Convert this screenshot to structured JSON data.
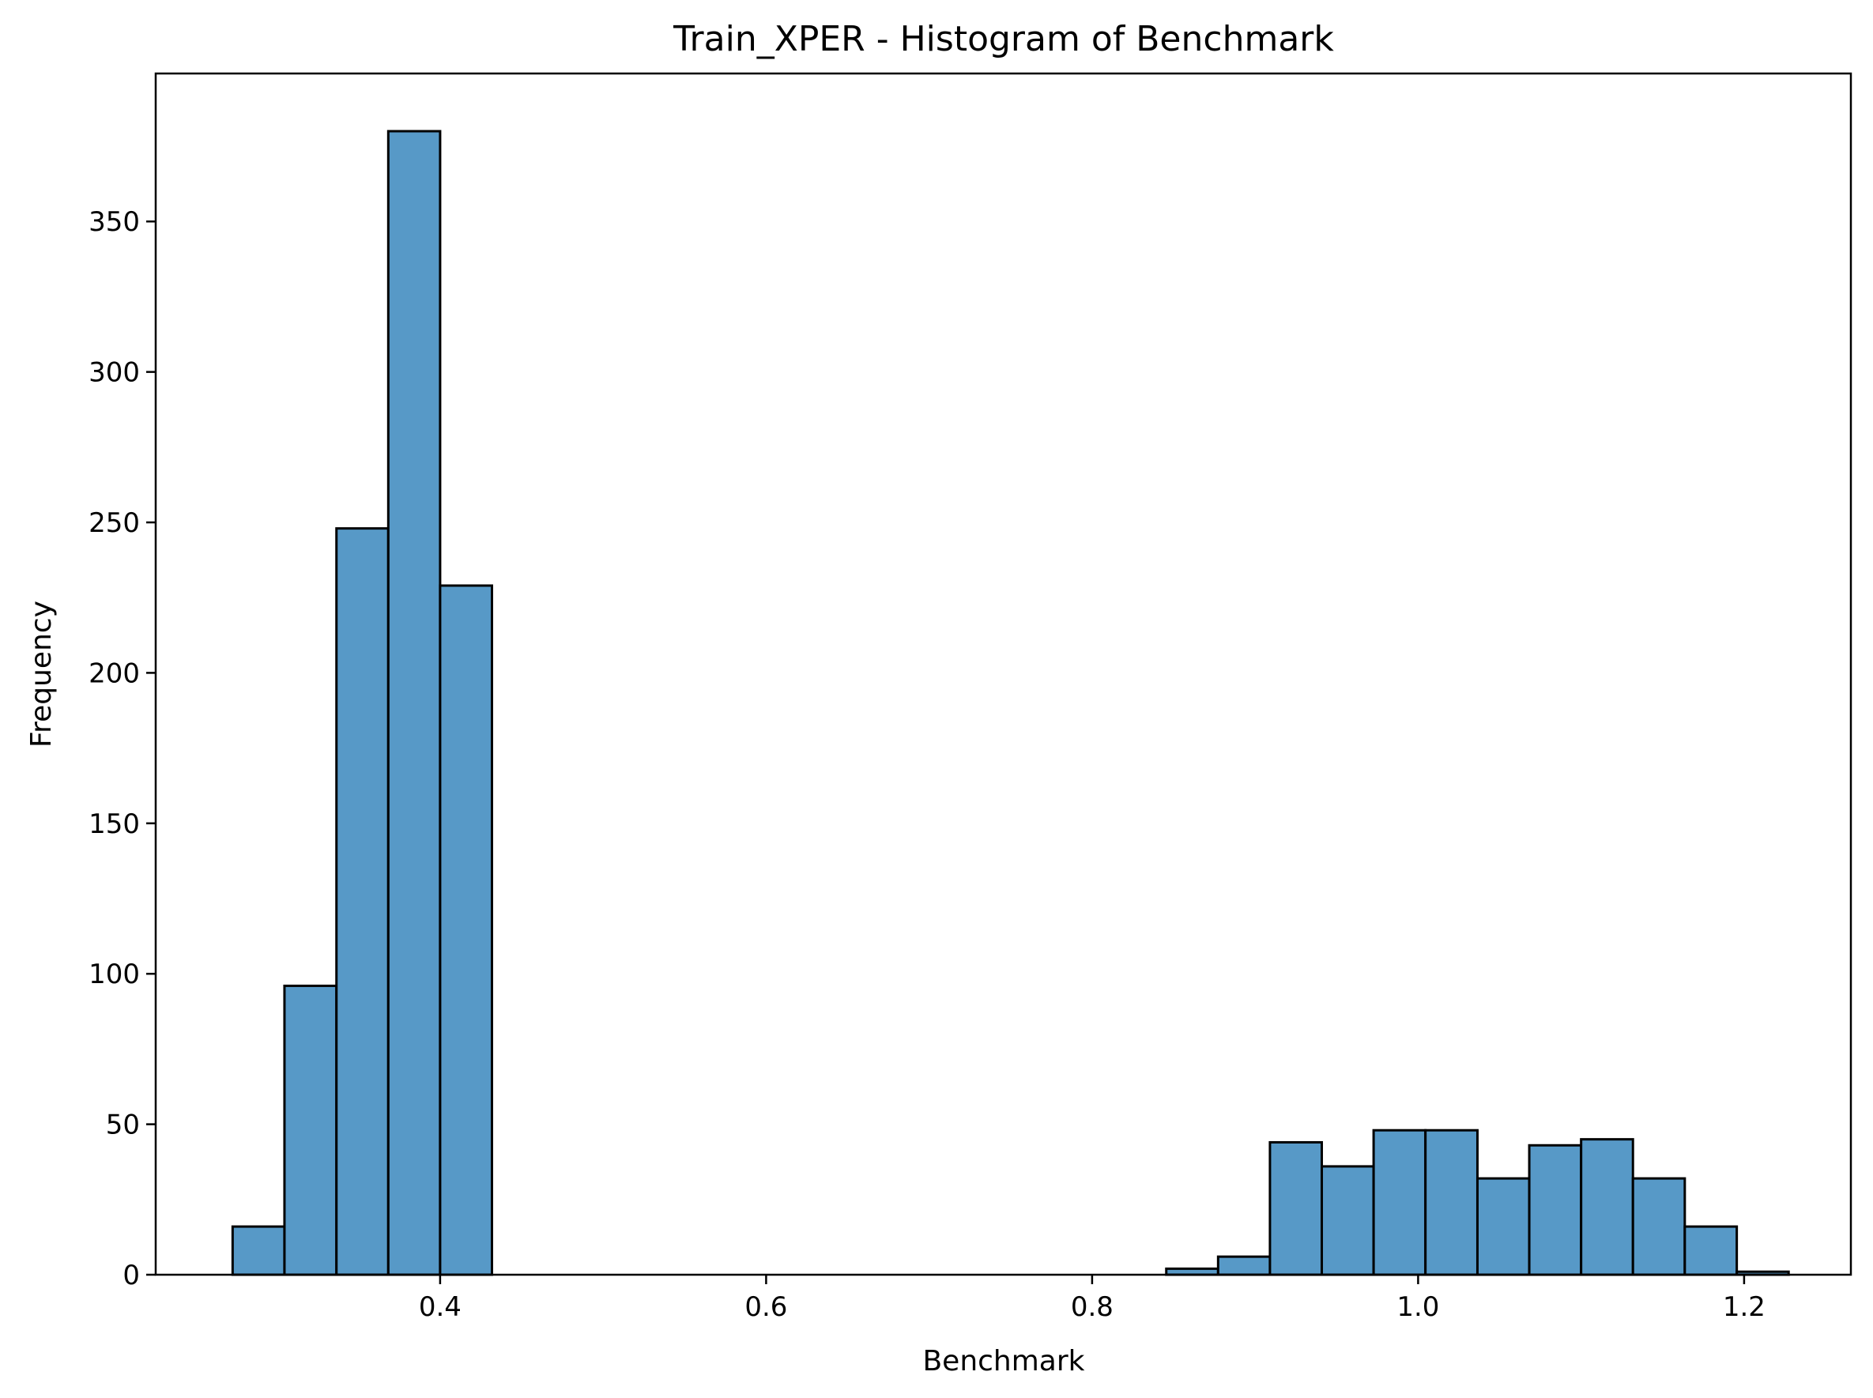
{
  "chart_data": {
    "type": "bar",
    "title": "Train_XPER - Histogram of Benchmark",
    "xlabel": "Benchmark",
    "ylabel": "Frequency",
    "xlim": [
      0.2255,
      1.2655
    ],
    "ylim": [
      0,
      380
    ],
    "xticks": [
      0.4,
      0.6,
      0.8,
      1.0,
      1.2
    ],
    "xtick_labels": [
      "0.4",
      "0.6",
      "0.8",
      "1.0",
      "1.2"
    ],
    "yticks": [
      0,
      50,
      100,
      150,
      200,
      250,
      300,
      350
    ],
    "ytick_labels": [
      "0",
      "50",
      "100",
      "150",
      "200",
      "250",
      "300",
      "350"
    ],
    "bins": [
      {
        "x0": 0.2727,
        "x1": 0.3045,
        "count": 16
      },
      {
        "x0": 0.3045,
        "x1": 0.3364,
        "count": 96
      },
      {
        "x0": 0.3364,
        "x1": 0.3682,
        "count": 248
      },
      {
        "x0": 0.3682,
        "x1": 0.4,
        "count": 380
      },
      {
        "x0": 0.4,
        "x1": 0.4318,
        "count": 229
      },
      {
        "x0": 0.4318,
        "x1": 0.4636,
        "count": 0
      },
      {
        "x0": 0.4636,
        "x1": 0.4955,
        "count": 0
      },
      {
        "x0": 0.4955,
        "x1": 0.5273,
        "count": 0
      },
      {
        "x0": 0.5273,
        "x1": 0.5591,
        "count": 0
      },
      {
        "x0": 0.5591,
        "x1": 0.5909,
        "count": 0
      },
      {
        "x0": 0.5909,
        "x1": 0.6227,
        "count": 0
      },
      {
        "x0": 0.6227,
        "x1": 0.6545,
        "count": 0
      },
      {
        "x0": 0.6545,
        "x1": 0.6864,
        "count": 0
      },
      {
        "x0": 0.6864,
        "x1": 0.7182,
        "count": 0
      },
      {
        "x0": 0.7182,
        "x1": 0.75,
        "count": 0
      },
      {
        "x0": 0.75,
        "x1": 0.7818,
        "count": 0
      },
      {
        "x0": 0.7818,
        "x1": 0.8136,
        "count": 0
      },
      {
        "x0": 0.8136,
        "x1": 0.8455,
        "count": 0
      },
      {
        "x0": 0.8455,
        "x1": 0.8773,
        "count": 2
      },
      {
        "x0": 0.8773,
        "x1": 0.9091,
        "count": 6
      },
      {
        "x0": 0.9091,
        "x1": 0.9409,
        "count": 44
      },
      {
        "x0": 0.9409,
        "x1": 0.9727,
        "count": 36
      },
      {
        "x0": 0.9727,
        "x1": 1.0045,
        "count": 48
      },
      {
        "x0": 1.0045,
        "x1": 1.0364,
        "count": 48
      },
      {
        "x0": 1.0364,
        "x1": 1.0682,
        "count": 32
      },
      {
        "x0": 1.0682,
        "x1": 1.1,
        "count": 43
      },
      {
        "x0": 1.1,
        "x1": 1.1318,
        "count": 45
      },
      {
        "x0": 1.1318,
        "x1": 1.1636,
        "count": 32
      },
      {
        "x0": 1.1636,
        "x1": 1.1955,
        "count": 16
      },
      {
        "x0": 1.1955,
        "x1": 1.2273,
        "count": 1
      }
    ],
    "colors": {
      "bar_fill": "#5799c7",
      "bar_edge": "#000000"
    },
    "grid": false,
    "legend": "none"
  }
}
